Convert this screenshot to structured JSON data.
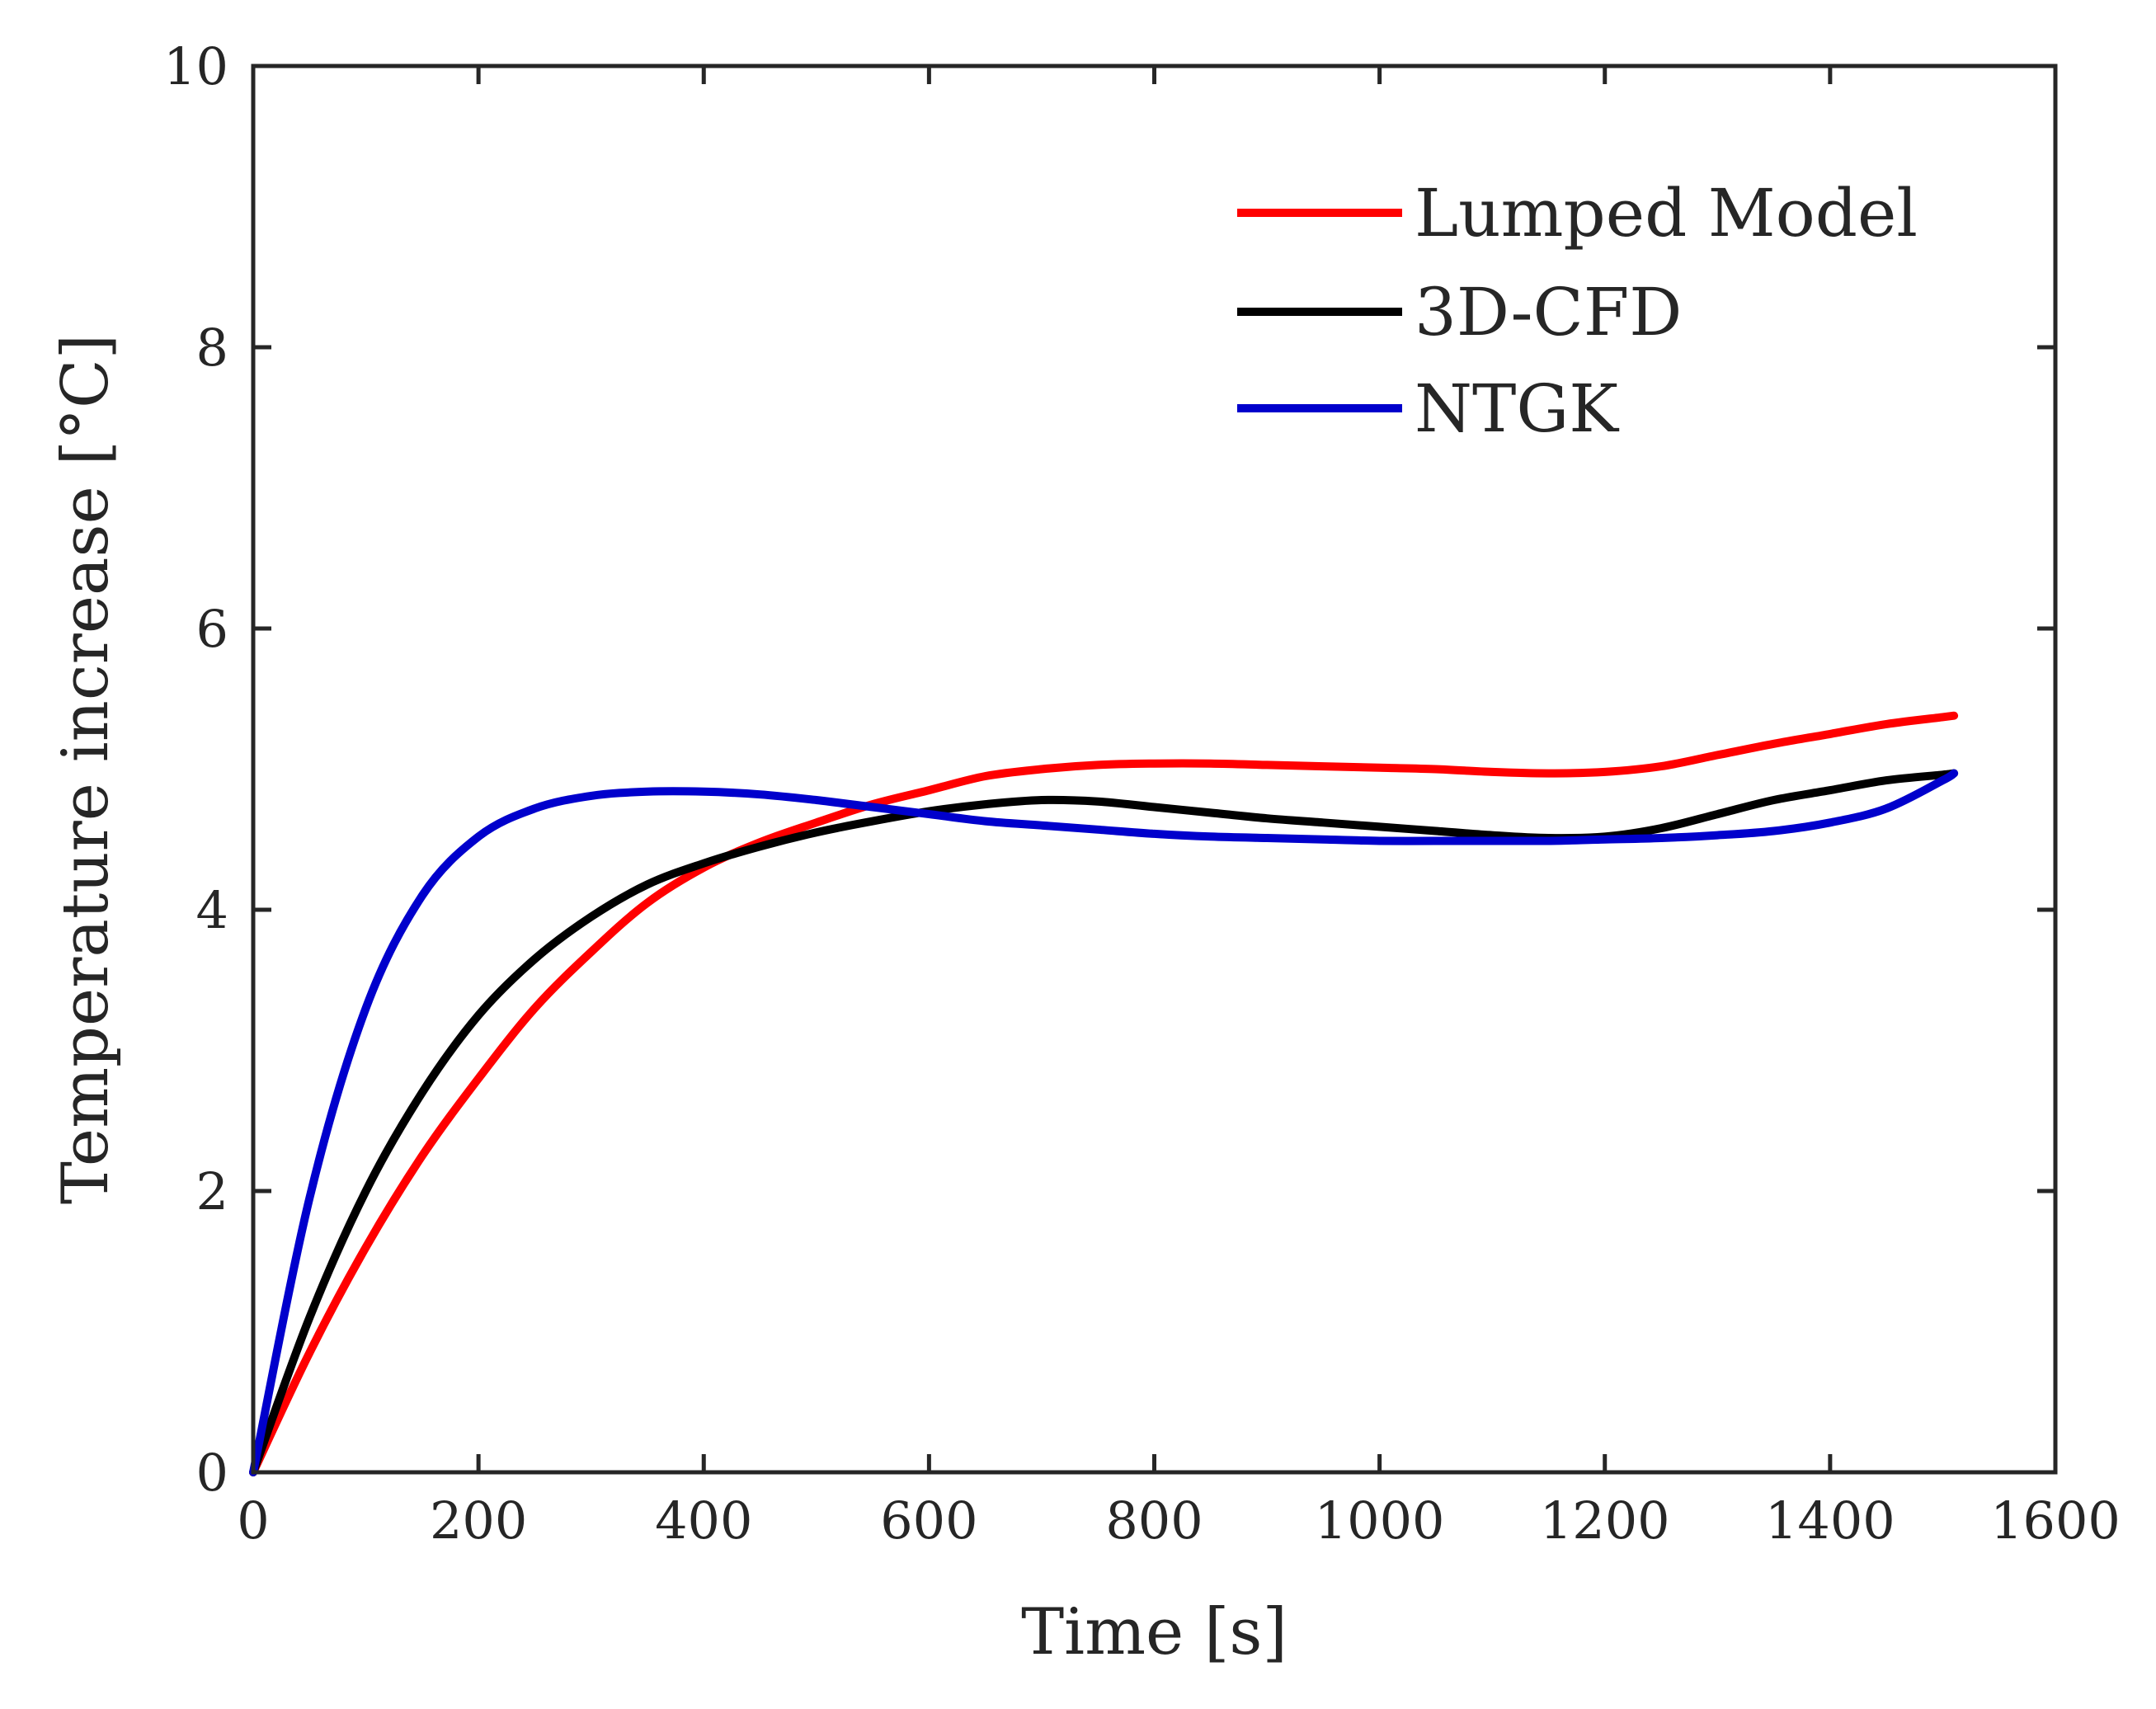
{
  "chart_data": {
    "type": "line",
    "title": "",
    "xlabel": "Time [s]",
    "ylabel": "Temperature increase [°C]",
    "xlim": [
      0,
      1600
    ],
    "ylim": [
      0,
      10
    ],
    "xticks": [
      0,
      200,
      400,
      600,
      800,
      1000,
      1200,
      1400,
      1600
    ],
    "yticks": [
      0,
      2,
      4,
      6,
      8,
      10
    ],
    "xtick_labels": [
      "0",
      "200",
      "400",
      "600",
      "800",
      "1000",
      "1200",
      "1400",
      "1600"
    ],
    "ytick_labels": [
      "0",
      "2",
      "4",
      "6",
      "8",
      "10"
    ],
    "grid": false,
    "legend_position": "top-right",
    "x": [
      0,
      50,
      100,
      150,
      200,
      250,
      300,
      350,
      400,
      450,
      500,
      550,
      600,
      650,
      700,
      750,
      800,
      850,
      900,
      950,
      1000,
      1050,
      1100,
      1150,
      1200,
      1250,
      1300,
      1350,
      1400,
      1450,
      1500,
      1510
    ],
    "series": [
      {
        "name": "Lumped Model",
        "color": "#ff0000",
        "values": [
          0,
          0.85,
          1.6,
          2.25,
          2.8,
          3.3,
          3.7,
          4.05,
          4.3,
          4.48,
          4.62,
          4.75,
          4.85,
          4.95,
          5.0,
          5.03,
          5.04,
          5.04,
          5.03,
          5.02,
          5.01,
          5.0,
          4.98,
          4.97,
          4.98,
          5.02,
          5.1,
          5.18,
          5.25,
          5.32,
          5.37,
          5.38
        ]
      },
      {
        "name": "3D-CFD",
        "color": "#000000",
        "values": [
          0,
          1.1,
          2.0,
          2.7,
          3.25,
          3.65,
          3.95,
          4.18,
          4.33,
          4.45,
          4.55,
          4.63,
          4.7,
          4.75,
          4.78,
          4.77,
          4.73,
          4.69,
          4.65,
          4.62,
          4.59,
          4.56,
          4.53,
          4.51,
          4.52,
          4.58,
          4.68,
          4.78,
          4.85,
          4.92,
          4.96,
          4.97
        ]
      },
      {
        "name": "NTGK",
        "color": "#0000cc",
        "values": [
          0,
          1.95,
          3.3,
          4.1,
          4.52,
          4.72,
          4.81,
          4.84,
          4.84,
          4.82,
          4.78,
          4.73,
          4.68,
          4.63,
          4.6,
          4.57,
          4.54,
          4.52,
          4.51,
          4.5,
          4.49,
          4.49,
          4.49,
          4.49,
          4.5,
          4.51,
          4.53,
          4.56,
          4.62,
          4.72,
          4.92,
          4.97
        ]
      }
    ]
  }
}
